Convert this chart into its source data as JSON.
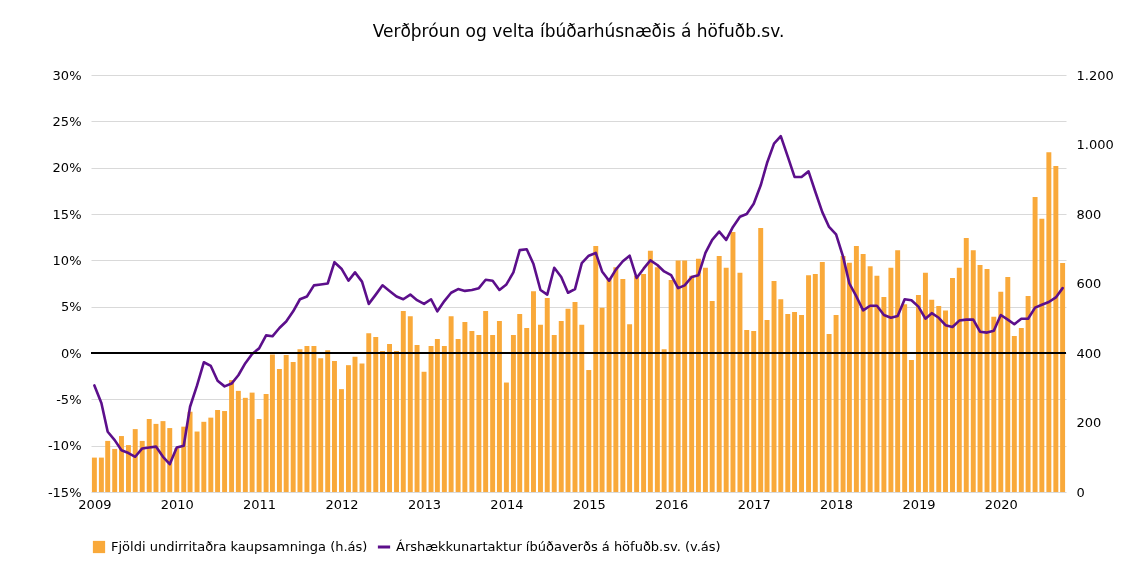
{
  "chart_data": {
    "type": "bar",
    "title": "Verðþróun og velta íbúðarhúsnæðis á höfuðb.sv.",
    "x": [
      "2009-01",
      "2009-02",
      "2009-03",
      "2009-04",
      "2009-05",
      "2009-06",
      "2009-07",
      "2009-08",
      "2009-09",
      "2009-10",
      "2009-11",
      "2009-12",
      "2010-01",
      "2010-02",
      "2010-03",
      "2010-04",
      "2010-05",
      "2010-06",
      "2010-07",
      "2010-08",
      "2010-09",
      "2010-10",
      "2010-11",
      "2010-12",
      "2011-01",
      "2011-02",
      "2011-03",
      "2011-04",
      "2011-05",
      "2011-06",
      "2011-07",
      "2011-08",
      "2011-09",
      "2011-10",
      "2011-11",
      "2011-12",
      "2012-01",
      "2012-02",
      "2012-03",
      "2012-04",
      "2012-05",
      "2012-06",
      "2012-07",
      "2012-08",
      "2012-09",
      "2012-10",
      "2012-11",
      "2012-12",
      "2013-01",
      "2013-02",
      "2013-03",
      "2013-04",
      "2013-05",
      "2013-06",
      "2013-07",
      "2013-08",
      "2013-09",
      "2013-10",
      "2013-11",
      "2013-12",
      "2014-01",
      "2014-02",
      "2014-03",
      "2014-04",
      "2014-05",
      "2014-06",
      "2014-07",
      "2014-08",
      "2014-09",
      "2014-10",
      "2014-11",
      "2014-12",
      "2015-01",
      "2015-02",
      "2015-03",
      "2015-04",
      "2015-05",
      "2015-06",
      "2015-07",
      "2015-08",
      "2015-09",
      "2015-10",
      "2015-11",
      "2015-12",
      "2016-01",
      "2016-02",
      "2016-03",
      "2016-04",
      "2016-05",
      "2016-06",
      "2016-07",
      "2016-08",
      "2016-09",
      "2016-10",
      "2016-11",
      "2016-12",
      "2017-01",
      "2017-02",
      "2017-03",
      "2017-04",
      "2017-05",
      "2017-06",
      "2017-07",
      "2017-08",
      "2017-09",
      "2017-10",
      "2017-11",
      "2017-12",
      "2018-01",
      "2018-02",
      "2018-03",
      "2018-04",
      "2018-05",
      "2018-06",
      "2018-07",
      "2018-08",
      "2018-09",
      "2018-10",
      "2018-11",
      "2018-12",
      "2019-01",
      "2019-02",
      "2019-03",
      "2019-04",
      "2019-05",
      "2019-06",
      "2019-07",
      "2019-08",
      "2019-09",
      "2019-10",
      "2019-11",
      "2019-12",
      "2020-01",
      "2020-02",
      "2020-03",
      "2020-04",
      "2020-05",
      "2020-06",
      "2020-07",
      "2020-08",
      "2020-09",
      "2020-10"
    ],
    "xlim": [
      "2008-12-17",
      "2020-10-16"
    ],
    "xticks": [
      "2009",
      "2010",
      "2011",
      "2012",
      "2013",
      "2014",
      "2015",
      "2016",
      "2017",
      "2018",
      "2019",
      "2020"
    ],
    "ylim": [
      -15,
      30
    ],
    "yticks": [
      {
        "value": -15,
        "label": "-15%"
      },
      {
        "value": -10,
        "label": "-10%"
      },
      {
        "value": -5,
        "label": "-5%"
      },
      {
        "value": 0,
        "label": "0%"
      },
      {
        "value": 5,
        "label": "5%"
      },
      {
        "value": 10,
        "label": "10%"
      },
      {
        "value": 15,
        "label": "15%"
      },
      {
        "value": 20,
        "label": "20%"
      },
      {
        "value": 25,
        "label": "25%"
      },
      {
        "value": 30,
        "label": "30%"
      }
    ],
    "y2lim": [
      0,
      1200
    ],
    "y2ticks": [
      0,
      200,
      400,
      600,
      800,
      {
        "value": 1000,
        "label": "1.000"
      },
      {
        "value": 1200,
        "label": "1.200"
      }
    ],
    "grid": "y",
    "legend": "bottom",
    "ref_lines": [
      {
        "axis": "y",
        "value": 0,
        "color": "#000000"
      }
    ],
    "series": [
      {
        "name": "Fjöldi undirritaðra kaupsamninga (h.ás)",
        "axis": "y2",
        "color": "#f9a93a",
        "values": [
          99,
          99,
          147,
          124,
          161,
          135,
          181,
          147,
          210,
          196,
          204,
          184,
          126,
          188,
          231,
          174,
          202,
          214,
          236,
          233,
          322,
          291,
          271,
          286,
          210,
          282,
          396,
          354,
          394,
          374,
          411,
          420,
          420,
          385,
          408,
          377,
          296,
          365,
          389,
          370,
          457,
          446,
          406,
          426,
          406,
          521,
          506,
          423,
          346,
          420,
          440,
          420,
          506,
          440,
          489,
          463,
          452,
          521,
          452,
          492,
          315,
          452,
          512,
          472,
          578,
          481,
          558,
          452,
          492,
          527,
          547,
          481,
          351,
          708,
          530,
          613,
          647,
          613,
          483,
          622,
          627,
          694,
          647,
          411,
          610,
          666,
          666,
          622,
          671,
          645,
          550,
          679,
          645,
          748,
          631,
          466,
          463,
          760,
          495,
          607,
          555,
          512,
          518,
          509,
          624,
          627,
          662,
          455,
          509,
          679,
          660,
          708,
          685,
          650,
          622,
          561,
          645,
          696,
          540,
          380,
          567,
          631,
          553,
          535,
          522,
          616,
          645,
          731,
          696,
          653,
          642,
          504,
          576,
          619,
          449,
          472,
          564,
          849,
          786,
          978,
          938,
          659
        ]
      },
      {
        "name": "Árshækkunartaktur íbúðaverðs á höfuðb.sv. (v.ás)",
        "type": "line",
        "color": "#5c0f8b",
        "values": [
          -3.5,
          -5.4,
          -8.5,
          -9.4,
          -10.5,
          -10.8,
          -11.2,
          -10.3,
          -10.2,
          -10.1,
          -11.2,
          -12.0,
          -10.2,
          -10.0,
          -5.8,
          -3.5,
          -1.0,
          -1.4,
          -3.0,
          -3.6,
          -3.3,
          -2.4,
          -1.1,
          -0.1,
          0.5,
          1.9,
          1.8,
          2.7,
          3.4,
          4.5,
          5.8,
          6.1,
          7.3,
          7.4,
          7.5,
          9.8,
          9.1,
          7.8,
          8.7,
          7.7,
          5.3,
          6.3,
          7.3,
          6.7,
          6.1,
          5.8,
          6.3,
          5.7,
          5.3,
          5.8,
          4.5,
          5.6,
          6.5,
          6.9,
          6.7,
          6.8,
          7.0,
          7.9,
          7.8,
          6.8,
          7.4,
          8.7,
          11.1,
          11.2,
          9.6,
          6.8,
          6.3,
          9.2,
          8.2,
          6.5,
          6.9,
          9.7,
          10.5,
          10.8,
          8.8,
          7.8,
          9.0,
          9.9,
          10.5,
          8.1,
          9.1,
          10.0,
          9.5,
          8.8,
          8.4,
          7.0,
          7.3,
          8.2,
          8.4,
          10.8,
          12.2,
          13.1,
          12.2,
          13.6,
          14.7,
          15.0,
          16.1,
          18.1,
          20.5,
          22.6,
          23.4,
          21.2,
          19.0,
          19.0,
          19.6,
          17.4,
          15.2,
          13.6,
          12.8,
          10.4,
          7.5,
          6.1,
          4.6,
          5.1,
          5.1,
          4.1,
          3.8,
          4.0,
          5.8,
          5.7,
          5.0,
          3.7,
          4.3,
          3.8,
          3.0,
          2.8,
          3.5,
          3.6,
          3.6,
          2.3,
          2.2,
          2.4,
          4.1,
          3.6,
          3.1,
          3.7,
          3.7,
          4.9,
          5.2,
          5.5,
          6.0,
          7.0
        ]
      }
    ]
  }
}
